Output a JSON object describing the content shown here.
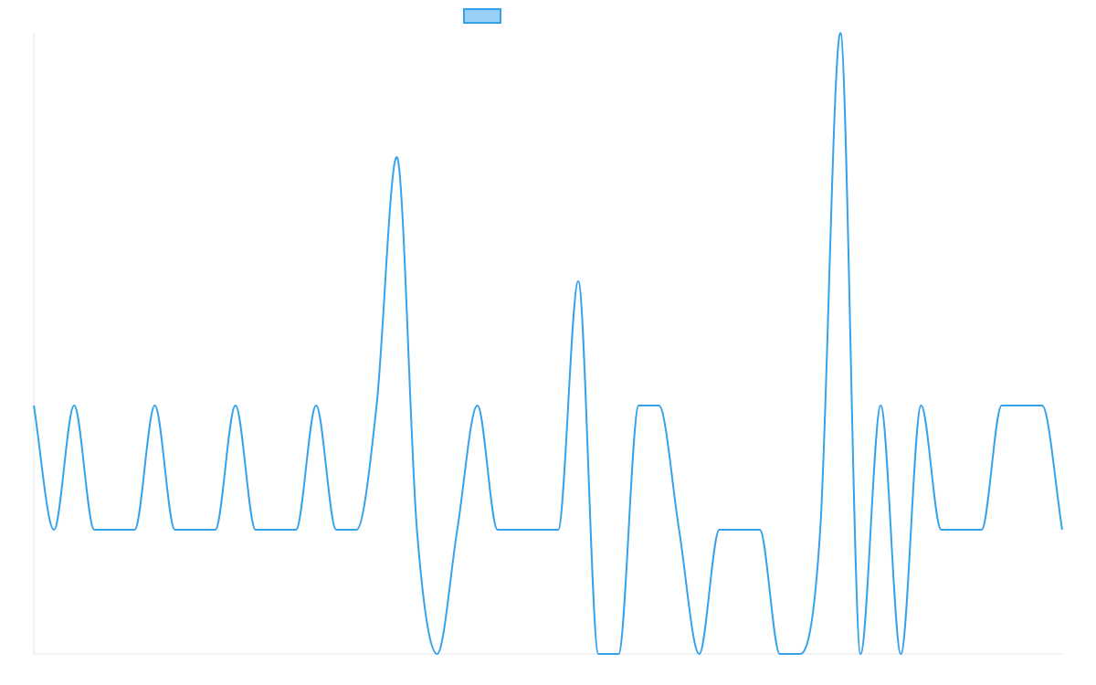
{
  "chart_data": {
    "type": "line",
    "categories": [
      null,
      null,
      null,
      null,
      null,
      null,
      null,
      null,
      null,
      null,
      null,
      null,
      null,
      null,
      null,
      null,
      null,
      null,
      null,
      null,
      null,
      null,
      null,
      null,
      null,
      null,
      null,
      null,
      null,
      null,
      null,
      null,
      null,
      null,
      null,
      null,
      null,
      null,
      null,
      null,
      null,
      null,
      null,
      null,
      null,
      null,
      null,
      null,
      null,
      null,
      null,
      null
    ],
    "series": [
      {
        "color": "#36a2eb",
        "fill": "#9ad0f5",
        "values": [
          2,
          1,
          2,
          1,
          1,
          1,
          2,
          1,
          1,
          1,
          2,
          1,
          1,
          1,
          2,
          1,
          1,
          2,
          4,
          1,
          0,
          1,
          2,
          1,
          1,
          1,
          1,
          3,
          0,
          0,
          2,
          2,
          1,
          0,
          1,
          1,
          1,
          0,
          0,
          1,
          5,
          0,
          2,
          0,
          2,
          1,
          1,
          1,
          2,
          2,
          2,
          1
        ]
      }
    ],
    "ylim": [
      0,
      5
    ]
  }
}
